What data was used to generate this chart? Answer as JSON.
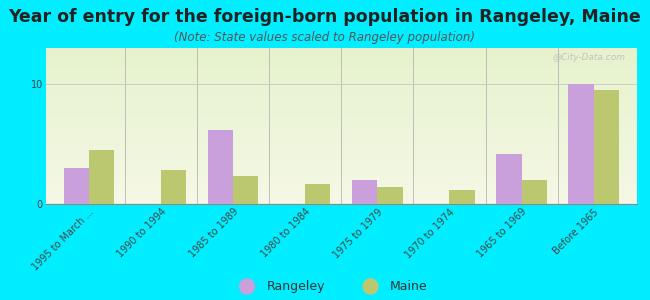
{
  "title": "Year of entry for the foreign-born population in Rangeley, Maine",
  "subtitle": "(Note: State values scaled to Rangeley population)",
  "categories": [
    "1995 to March ...",
    "1990 to 1994",
    "1985 to 1989",
    "1980 to 1984",
    "1975 to 1979",
    "1970 to 1974",
    "1965 to 1969",
    "Before 1965"
  ],
  "rangeley_values": [
    3.0,
    0.0,
    6.2,
    0.0,
    2.0,
    0.0,
    4.2,
    10.0
  ],
  "maine_values": [
    4.5,
    2.8,
    2.3,
    1.7,
    1.4,
    1.2,
    2.0,
    9.5
  ],
  "rangeley_color": "#c9a0dc",
  "maine_color": "#bcc870",
  "background_color": "#00eeff",
  "ylim": [
    0,
    13
  ],
  "yticks": [
    0,
    10
  ],
  "bar_width": 0.35,
  "title_fontsize": 12.5,
  "subtitle_fontsize": 8.5,
  "tick_fontsize": 7,
  "legend_fontsize": 9,
  "watermark": "@City-Data.com"
}
